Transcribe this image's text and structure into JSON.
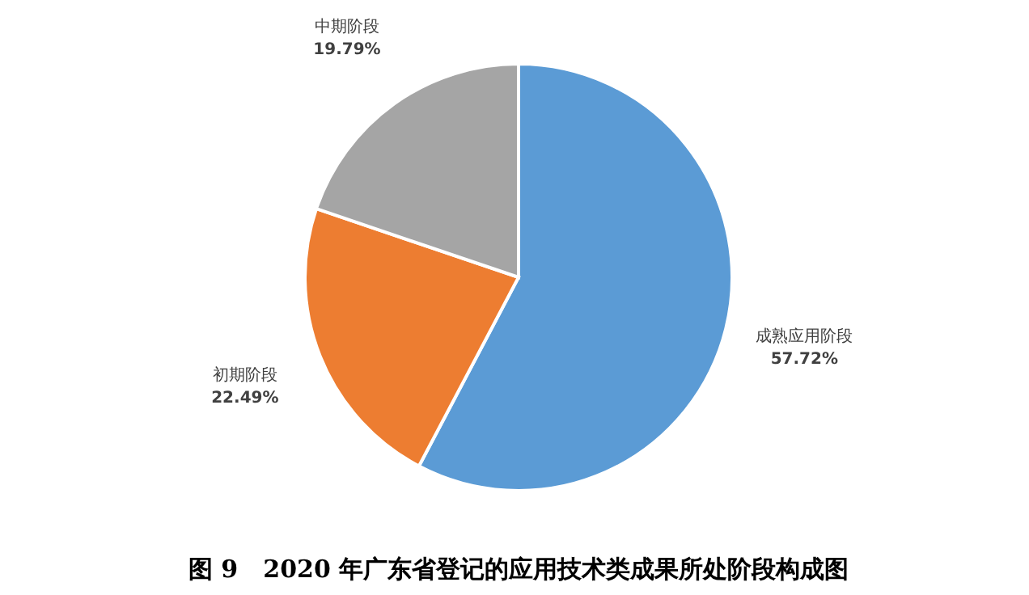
{
  "chart_data": {
    "type": "pie",
    "title": "图 9   2020 年广东省登记的应用技术类成果所处阶段构成图",
    "categories": [
      "成熟应用阶段",
      "初期阶段",
      "中期阶段"
    ],
    "values": [
      57.72,
      22.49,
      19.79
    ],
    "colors": [
      "#5b9bd5",
      "#ed7d31",
      "#a5a5a5"
    ],
    "value_labels": [
      "57.72%",
      "22.49%",
      "19.79%"
    ],
    "legend": false
  }
}
